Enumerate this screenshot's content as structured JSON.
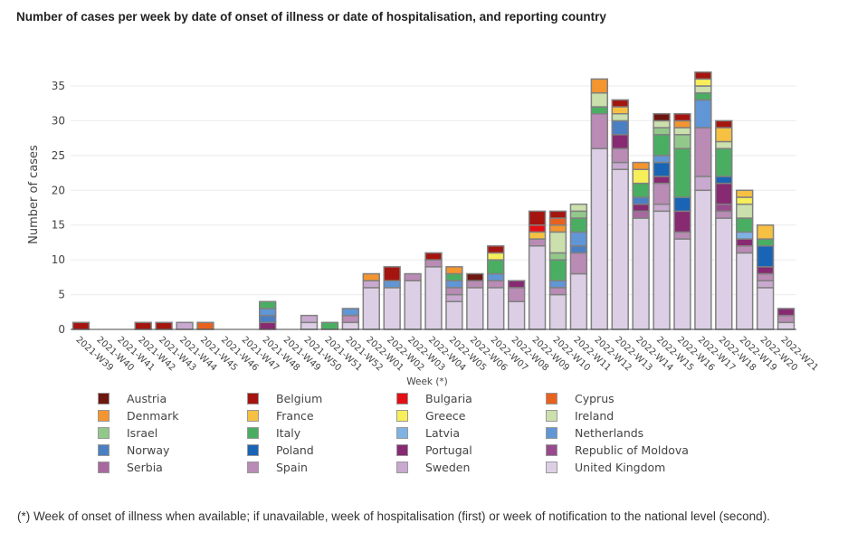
{
  "chart_data": {
    "type": "bar",
    "stacked": true,
    "title": "Number of cases per week by date of onset of illness or date of hospitalisation, and reporting country",
    "xlabel": "Week (*)",
    "ylabel": "Number of cases",
    "ylim": [
      0,
      37
    ],
    "yticks": [
      0,
      5,
      10,
      15,
      20,
      25,
      30,
      35
    ],
    "grid": true,
    "legend_position": "bottom",
    "categories": [
      "2021-W39",
      "2021-W40",
      "2021-W41",
      "2021-W42",
      "2021-W43",
      "2021-W44",
      "2021-W45",
      "2021-W46",
      "2021-W47",
      "2021-W48",
      "2021-W49",
      "2021-W50",
      "2021-W51",
      "2021-W52",
      "2022-W01",
      "2022-W02",
      "2022-W03",
      "2022-W04",
      "2022-W05",
      "2022-W06",
      "2022-W07",
      "2022-W08",
      "2022-W09",
      "2022-W10",
      "2022-W11",
      "2022-W12",
      "2022-W13",
      "2022-W14",
      "2022-W15",
      "2022-W16",
      "2022-W17",
      "2022-W18",
      "2022-W19",
      "2022-W20",
      "2022-W21"
    ],
    "series": [
      {
        "name": "United Kingdom",
        "color": "#dccfe5",
        "values": [
          0,
          0,
          0,
          0,
          0,
          0,
          0,
          0,
          0,
          0,
          0,
          1,
          0,
          1,
          6,
          6,
          7,
          9,
          4,
          6,
          6,
          4,
          12,
          5,
          8,
          26,
          23,
          16,
          17,
          13,
          20,
          16,
          11,
          6,
          1
        ]
      },
      {
        "name": "Sweden",
        "color": "#c9a9cf",
        "values": [
          0,
          0,
          0,
          0,
          0,
          1,
          0,
          0,
          0,
          0,
          0,
          1,
          0,
          0,
          1,
          0,
          0,
          0,
          1,
          0,
          0,
          0,
          0,
          0,
          0,
          0,
          1,
          0,
          1,
          0,
          2,
          0,
          0,
          1,
          0
        ]
      },
      {
        "name": "Spain",
        "color": "#b98bb5",
        "values": [
          0,
          0,
          0,
          0,
          0,
          0,
          0,
          0,
          0,
          0,
          0,
          0,
          0,
          1,
          0,
          0,
          1,
          1,
          1,
          1,
          1,
          2,
          1,
          1,
          3,
          5,
          2,
          0,
          3,
          1,
          7,
          1,
          1,
          1,
          1
        ]
      },
      {
        "name": "Serbia",
        "color": "#a868a0",
        "values": [
          0,
          0,
          0,
          0,
          0,
          0,
          0,
          0,
          0,
          0,
          0,
          0,
          0,
          0,
          0,
          0,
          0,
          0,
          0,
          0,
          0,
          0,
          0,
          0,
          0,
          0,
          0,
          1,
          0,
          0,
          0,
          0,
          0,
          0,
          0
        ]
      },
      {
        "name": "Republic of Moldova",
        "color": "#984b8c",
        "values": [
          0,
          0,
          0,
          0,
          0,
          0,
          0,
          0,
          0,
          0,
          0,
          0,
          0,
          0,
          0,
          0,
          0,
          0,
          0,
          0,
          0,
          0,
          0,
          0,
          0,
          0,
          0,
          0,
          0,
          0,
          0,
          1,
          0,
          0,
          0
        ]
      },
      {
        "name": "Portugal",
        "color": "#872a72",
        "values": [
          0,
          0,
          0,
          0,
          0,
          0,
          0,
          0,
          0,
          1,
          0,
          0,
          0,
          0,
          0,
          0,
          0,
          0,
          0,
          0,
          0,
          1,
          0,
          0,
          0,
          0,
          2,
          1,
          1,
          3,
          0,
          3,
          1,
          1,
          1
        ]
      },
      {
        "name": "Poland",
        "color": "#1964b4",
        "values": [
          0,
          0,
          0,
          0,
          0,
          0,
          0,
          0,
          0,
          0,
          0,
          0,
          0,
          0,
          0,
          0,
          0,
          0,
          0,
          0,
          0,
          0,
          0,
          0,
          0,
          0,
          0,
          0,
          2,
          2,
          0,
          1,
          0,
          3,
          0
        ]
      },
      {
        "name": "Norway",
        "color": "#4a7fc4",
        "values": [
          0,
          0,
          0,
          0,
          0,
          0,
          0,
          0,
          0,
          1,
          0,
          0,
          0,
          0,
          0,
          0,
          0,
          0,
          0,
          0,
          0,
          0,
          0,
          0,
          1,
          0,
          2,
          1,
          0,
          0,
          0,
          0,
          0,
          0,
          0
        ]
      },
      {
        "name": "Netherlands",
        "color": "#6096d5",
        "values": [
          0,
          0,
          0,
          0,
          0,
          0,
          0,
          0,
          0,
          1,
          0,
          0,
          0,
          1,
          0,
          1,
          0,
          0,
          1,
          0,
          1,
          0,
          0,
          1,
          2,
          0,
          0,
          0,
          1,
          0,
          4,
          0,
          0,
          0,
          0
        ]
      },
      {
        "name": "Latvia",
        "color": "#7eb3e3",
        "values": [
          0,
          0,
          0,
          0,
          0,
          0,
          0,
          0,
          0,
          0,
          0,
          0,
          0,
          0,
          0,
          0,
          0,
          0,
          0,
          0,
          0,
          0,
          0,
          0,
          0,
          0,
          0,
          0,
          0,
          0,
          0,
          0,
          1,
          0,
          0
        ]
      },
      {
        "name": "Italy",
        "color": "#4aae62",
        "values": [
          0,
          0,
          0,
          0,
          0,
          0,
          0,
          0,
          0,
          1,
          0,
          0,
          1,
          0,
          0,
          0,
          0,
          0,
          1,
          0,
          2,
          0,
          0,
          3,
          2,
          1,
          0,
          2,
          3,
          7,
          1,
          4,
          2,
          1,
          0
        ]
      },
      {
        "name": "Israel",
        "color": "#92c98a",
        "values": [
          0,
          0,
          0,
          0,
          0,
          0,
          0,
          0,
          0,
          0,
          0,
          0,
          0,
          0,
          0,
          0,
          0,
          0,
          0,
          0,
          0,
          0,
          0,
          1,
          1,
          0,
          0,
          0,
          1,
          2,
          0,
          0,
          0,
          0,
          0
        ]
      },
      {
        "name": "Ireland",
        "color": "#cbe0ac",
        "values": [
          0,
          0,
          0,
          0,
          0,
          0,
          0,
          0,
          0,
          0,
          0,
          0,
          0,
          0,
          0,
          0,
          0,
          0,
          0,
          0,
          0,
          0,
          0,
          3,
          1,
          2,
          1,
          0,
          1,
          1,
          1,
          1,
          2,
          0,
          0
        ]
      },
      {
        "name": "Greece",
        "color": "#f7ef5a",
        "values": [
          0,
          0,
          0,
          0,
          0,
          0,
          0,
          0,
          0,
          0,
          0,
          0,
          0,
          0,
          0,
          0,
          0,
          0,
          0,
          0,
          1,
          0,
          0,
          0,
          0,
          0,
          0,
          2,
          0,
          0,
          1,
          0,
          1,
          0,
          0
        ]
      },
      {
        "name": "France",
        "color": "#f6c142",
        "values": [
          0,
          0,
          0,
          0,
          0,
          0,
          0,
          0,
          0,
          0,
          0,
          0,
          0,
          0,
          0,
          0,
          0,
          0,
          0,
          0,
          0,
          0,
          1,
          0,
          0,
          0,
          1,
          0,
          0,
          0,
          0,
          2,
          1,
          2,
          0
        ]
      },
      {
        "name": "Denmark",
        "color": "#f4952f",
        "values": [
          0,
          0,
          0,
          0,
          0,
          0,
          0,
          0,
          0,
          0,
          0,
          0,
          0,
          0,
          1,
          0,
          0,
          0,
          1,
          0,
          0,
          0,
          0,
          1,
          0,
          2,
          0,
          1,
          0,
          1,
          0,
          0,
          0,
          0,
          0
        ]
      },
      {
        "name": "Cyprus",
        "color": "#e8621f",
        "values": [
          0,
          0,
          0,
          0,
          0,
          0,
          1,
          0,
          0,
          0,
          0,
          0,
          0,
          0,
          0,
          0,
          0,
          0,
          0,
          0,
          0,
          0,
          0,
          1,
          0,
          0,
          0,
          0,
          0,
          0,
          0,
          0,
          0,
          0,
          0
        ]
      },
      {
        "name": "Bulgaria",
        "color": "#e40f14",
        "values": [
          0,
          0,
          0,
          0,
          0,
          0,
          0,
          0,
          0,
          0,
          0,
          0,
          0,
          0,
          0,
          0,
          0,
          0,
          0,
          0,
          0,
          0,
          1,
          0,
          0,
          0,
          0,
          0,
          0,
          0,
          0,
          0,
          0,
          0,
          0
        ]
      },
      {
        "name": "Belgium",
        "color": "#a5150f",
        "values": [
          1,
          0,
          0,
          1,
          1,
          0,
          0,
          0,
          0,
          0,
          0,
          0,
          0,
          0,
          0,
          2,
          0,
          1,
          0,
          0,
          1,
          0,
          2,
          1,
          0,
          0,
          1,
          0,
          0,
          1,
          1,
          1,
          0,
          0,
          0
        ]
      },
      {
        "name": "Austria",
        "color": "#6e1610",
        "values": [
          0,
          0,
          0,
          0,
          0,
          0,
          0,
          0,
          0,
          0,
          0,
          0,
          0,
          0,
          0,
          0,
          0,
          0,
          0,
          1,
          0,
          0,
          0,
          0,
          0,
          0,
          0,
          0,
          1,
          0,
          0,
          0,
          0,
          0,
          0
        ]
      }
    ],
    "legend_order": [
      "Austria",
      "Belgium",
      "Bulgaria",
      "Cyprus",
      "Denmark",
      "France",
      "Greece",
      "Ireland",
      "Israel",
      "Italy",
      "Latvia",
      "Netherlands",
      "Norway",
      "Poland",
      "Portugal",
      "Republic of Moldova",
      "Serbia",
      "Spain",
      "Sweden",
      "United Kingdom"
    ]
  },
  "footnote": "(*) Week of onset of illness when available; if unavailable, week of hospitalisation (first) or week of notification to the national level (second)."
}
